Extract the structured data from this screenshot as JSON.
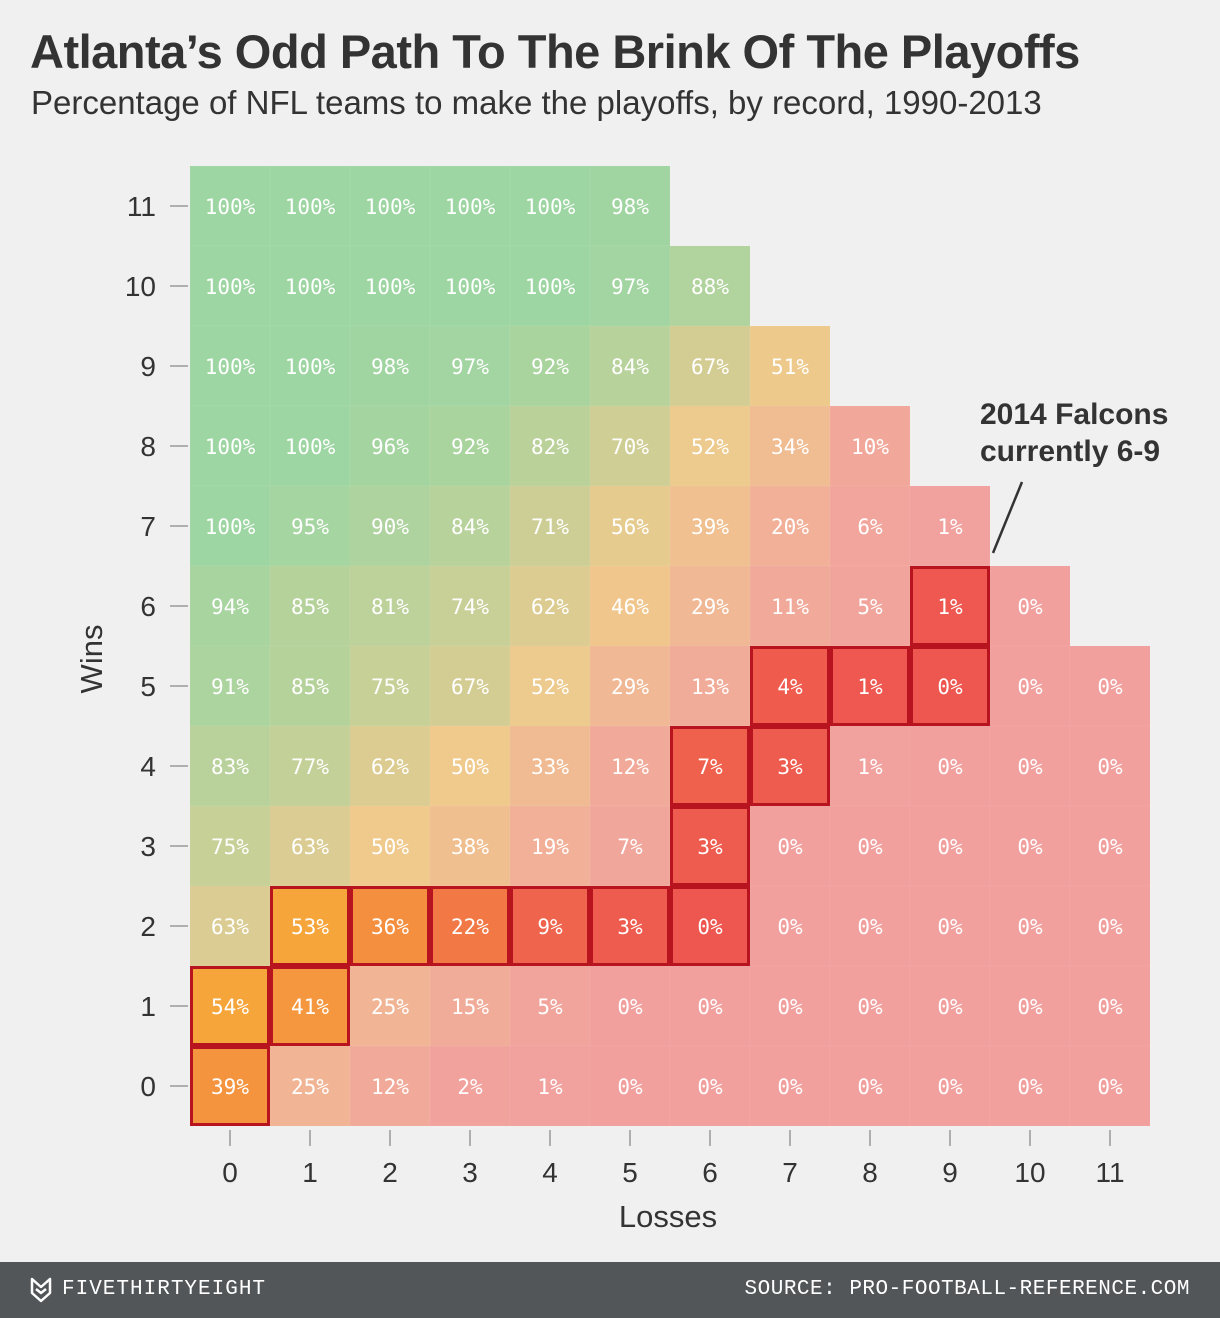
{
  "header": {
    "title": "Atlanta’s Odd Path To The Brink Of The Playoffs",
    "subtitle": "Percentage of NFL teams to make the playoffs, by record, 1990-2013"
  },
  "annotation": {
    "line1": "2014 Falcons",
    "line2": "currently 6-9"
  },
  "footer": {
    "brand": "FIVETHIRTYEIGHT",
    "source": "SOURCE: PRO-FOOTBALL-REFERENCE.COM"
  },
  "colors": {
    "high": "#9dd6a2",
    "mid": "#f0c98c",
    "low": "#f1a09e",
    "path_high": "#f6a53a",
    "path_low": "#ee5650",
    "path_border": "#b8141f",
    "background": "#f0f0f0"
  },
  "chart_data": {
    "type": "heatmap",
    "title": "Atlanta’s Odd Path To The Brink Of The Playoffs",
    "subtitle": "Percentage of NFL teams to make the playoffs, by record, 1990-2013",
    "xlabel": "Losses",
    "ylabel": "Wins",
    "x_ticks": [
      0,
      1,
      2,
      3,
      4,
      5,
      6,
      7,
      8,
      9,
      10,
      11
    ],
    "y_ticks": [
      0,
      1,
      2,
      3,
      4,
      5,
      6,
      7,
      8,
      9,
      10,
      11
    ],
    "value_unit": "%",
    "rows": [
      {
        "wins": 11,
        "values": [
          100,
          100,
          100,
          100,
          100,
          98
        ]
      },
      {
        "wins": 10,
        "values": [
          100,
          100,
          100,
          100,
          100,
          97,
          88
        ]
      },
      {
        "wins": 9,
        "values": [
          100,
          100,
          98,
          97,
          92,
          84,
          67,
          51
        ]
      },
      {
        "wins": 8,
        "values": [
          100,
          100,
          96,
          92,
          82,
          70,
          52,
          34,
          10
        ]
      },
      {
        "wins": 7,
        "values": [
          100,
          95,
          90,
          84,
          71,
          56,
          39,
          20,
          6,
          1
        ]
      },
      {
        "wins": 6,
        "values": [
          94,
          85,
          81,
          74,
          62,
          46,
          29,
          11,
          5,
          1,
          0
        ]
      },
      {
        "wins": 5,
        "values": [
          91,
          85,
          75,
          67,
          52,
          29,
          13,
          4,
          1,
          0,
          0,
          0
        ]
      },
      {
        "wins": 4,
        "values": [
          83,
          77,
          62,
          50,
          33,
          12,
          7,
          3,
          1,
          0,
          0,
          0
        ]
      },
      {
        "wins": 3,
        "values": [
          75,
          63,
          50,
          38,
          19,
          7,
          3,
          0,
          0,
          0,
          0,
          0
        ]
      },
      {
        "wins": 2,
        "values": [
          63,
          53,
          36,
          22,
          9,
          3,
          0,
          0,
          0,
          0,
          0,
          0
        ]
      },
      {
        "wins": 1,
        "values": [
          54,
          41,
          25,
          15,
          5,
          0,
          0,
          0,
          0,
          0,
          0,
          0
        ]
      },
      {
        "wins": 0,
        "values": [
          39,
          25,
          12,
          2,
          1,
          0,
          0,
          0,
          0,
          0,
          0,
          0
        ]
      }
    ],
    "highlighted_path": [
      {
        "wins": 0,
        "losses": 0
      },
      {
        "wins": 1,
        "losses": 0
      },
      {
        "wins": 1,
        "losses": 1
      },
      {
        "wins": 2,
        "losses": 1
      },
      {
        "wins": 2,
        "losses": 2
      },
      {
        "wins": 2,
        "losses": 3
      },
      {
        "wins": 2,
        "losses": 4
      },
      {
        "wins": 2,
        "losses": 5
      },
      {
        "wins": 2,
        "losses": 6
      },
      {
        "wins": 3,
        "losses": 6
      },
      {
        "wins": 4,
        "losses": 6
      },
      {
        "wins": 4,
        "losses": 7
      },
      {
        "wins": 5,
        "losses": 7
      },
      {
        "wins": 5,
        "losses": 8
      },
      {
        "wins": 5,
        "losses": 9
      },
      {
        "wins": 6,
        "losses": 9
      }
    ]
  }
}
